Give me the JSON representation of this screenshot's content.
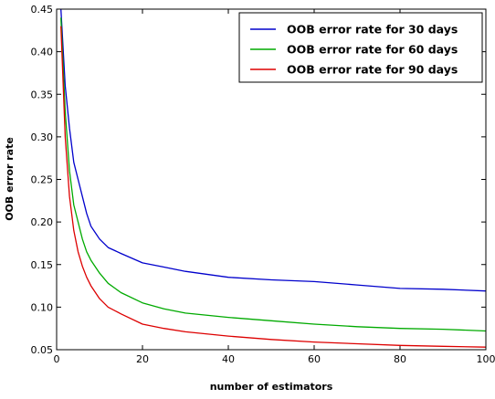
{
  "chart_data": {
    "type": "line",
    "title": "",
    "xlabel": "number of estimators",
    "ylabel": "OOB error rate",
    "xlim": [
      0,
      100
    ],
    "ylim": [
      0.05,
      0.45
    ],
    "xticks": [
      "0",
      "20",
      "40",
      "60",
      "80",
      "100"
    ],
    "yticks": [
      "0.05",
      "0.10",
      "0.15",
      "0.20",
      "0.25",
      "0.30",
      "0.35",
      "0.40",
      "0.45"
    ],
    "grid": false,
    "legend_position": "top-right",
    "series": [
      {
        "name": "OOB error rate for 30 days",
        "color": "#0000cc",
        "x": [
          1,
          2,
          3,
          4,
          5,
          6,
          7,
          8,
          10,
          12,
          15,
          20,
          25,
          30,
          40,
          50,
          60,
          70,
          80,
          90,
          100
        ],
        "y": [
          0.45,
          0.36,
          0.31,
          0.27,
          0.25,
          0.23,
          0.21,
          0.195,
          0.18,
          0.17,
          0.163,
          0.152,
          0.147,
          0.142,
          0.135,
          0.132,
          0.13,
          0.126,
          0.122,
          0.121,
          0.119
        ]
      },
      {
        "name": "OOB error rate for 60 days",
        "color": "#00aa00",
        "x": [
          1,
          2,
          3,
          4,
          5,
          6,
          7,
          8,
          10,
          12,
          15,
          20,
          25,
          30,
          40,
          50,
          60,
          70,
          80,
          90,
          100
        ],
        "y": [
          0.44,
          0.33,
          0.26,
          0.22,
          0.2,
          0.18,
          0.165,
          0.155,
          0.14,
          0.128,
          0.117,
          0.105,
          0.098,
          0.093,
          0.088,
          0.084,
          0.08,
          0.077,
          0.075,
          0.074,
          0.072
        ]
      },
      {
        "name": "OOB error rate for 90 days",
        "color": "#dd0000",
        "x": [
          1,
          2,
          3,
          4,
          5,
          6,
          7,
          8,
          10,
          12,
          15,
          20,
          25,
          30,
          40,
          50,
          60,
          70,
          80,
          90,
          100
        ],
        "y": [
          0.43,
          0.3,
          0.23,
          0.19,
          0.165,
          0.148,
          0.135,
          0.125,
          0.11,
          0.1,
          0.092,
          0.08,
          0.075,
          0.071,
          0.066,
          0.062,
          0.059,
          0.057,
          0.055,
          0.054,
          0.053
        ]
      }
    ]
  }
}
